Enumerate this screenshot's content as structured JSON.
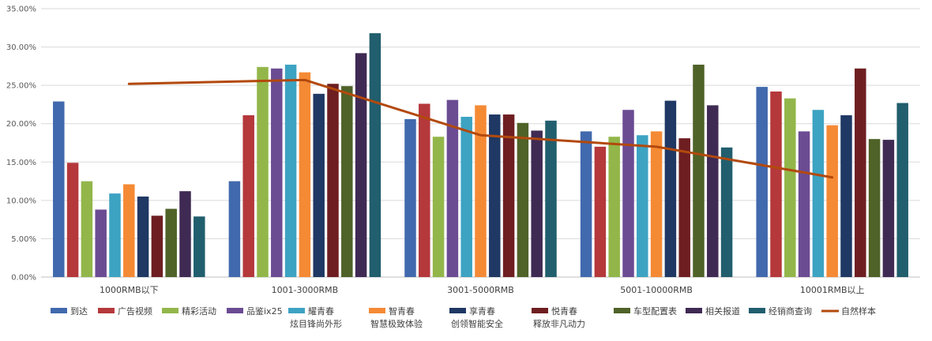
{
  "chart_data": {
    "type": "bar",
    "categories": [
      "1000RMB以下",
      "1001-3000RMB",
      "3001-5000RMB",
      "5001-10000RMB",
      "10001RMB以上"
    ],
    "ylim": [
      0,
      35
    ],
    "yticks": [
      "0.00%",
      "5.00%",
      "10.00%",
      "15.00%",
      "20.00%",
      "25.00%",
      "30.00%",
      "35.00%"
    ],
    "grid": true,
    "legend_position": "bottom",
    "series": [
      {
        "name": "到达",
        "color": "#4169AD",
        "values": [
          22.9,
          12.5,
          20.6,
          19.0,
          24.8
        ]
      },
      {
        "name": "广告视频",
        "color": "#B5383B",
        "values": [
          14.9,
          21.1,
          22.6,
          17.0,
          24.2
        ]
      },
      {
        "name": "精彩活动",
        "color": "#93B64A",
        "values": [
          12.5,
          27.4,
          18.3,
          18.3,
          23.3
        ]
      },
      {
        "name": "品鉴ix25",
        "color": "#6B4C93",
        "values": [
          8.8,
          27.2,
          23.1,
          21.8,
          19.0
        ]
      },
      {
        "name": "耀青春\n炫目锋尚外形",
        "color": "#3DA3C2",
        "values": [
          10.9,
          27.7,
          20.9,
          18.5,
          21.8
        ]
      },
      {
        "name": "智青春\n智慧极致体验",
        "color": "#F58A35",
        "values": [
          12.1,
          26.7,
          22.4,
          19.0,
          19.8
        ]
      },
      {
        "name": "享青春\n创领智能安全",
        "color": "#1F3864",
        "values": [
          10.5,
          23.9,
          21.2,
          23.0,
          21.1
        ]
      },
      {
        "name": "悦青春\n释放非凡动力",
        "color": "#6E1E21",
        "values": [
          8.0,
          25.2,
          21.2,
          18.1,
          27.2
        ]
      },
      {
        "name": "车型配置表",
        "color": "#4F6228",
        "values": [
          8.9,
          24.9,
          20.1,
          27.7,
          18.0
        ]
      },
      {
        "name": "相关报道",
        "color": "#3F2A54",
        "values": [
          11.2,
          29.2,
          19.1,
          22.4,
          17.9
        ]
      },
      {
        "name": "经销商查询",
        "color": "#215E6E",
        "values": [
          7.9,
          31.8,
          20.4,
          16.9,
          22.7
        ]
      }
    ],
    "line_series": {
      "name": "自然样本",
      "color": "#B3490C",
      "values": [
        25.2,
        25.7,
        18.5,
        17.0,
        13.0
      ]
    }
  }
}
